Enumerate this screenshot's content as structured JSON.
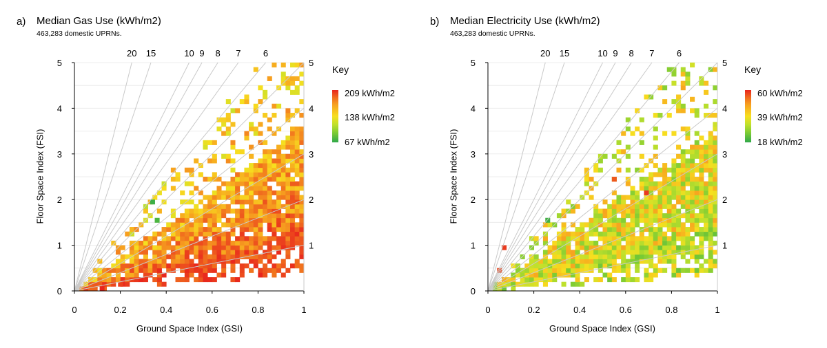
{
  "panels": [
    {
      "id": "a",
      "letter": "a)",
      "title": "Median Gas Use (kWh/m2)",
      "subtitle": "463,283 domestic UPRNs.",
      "xlabel": "Ground Space Index (GSI)",
      "ylabel": "Floor Space Index (FSI)",
      "key_title": "Key",
      "key_labels": [
        "209 kWh/m2",
        "138 kWh/m2",
        "67 kWh/m2"
      ]
    },
    {
      "id": "b",
      "letter": "b)",
      "title": "Median Electricity Use (kWh/m2)",
      "subtitle": "463,283 domestic UPRNs.",
      "xlabel": "Ground Space Index (GSI)",
      "ylabel": "Floor Space Index (FSI)",
      "key_title": "Key",
      "key_labels": [
        "60 kWh/m2",
        "39 kWh/m2",
        "18 kWh/m2"
      ]
    }
  ],
  "chart_data": [
    {
      "type": "heatmap",
      "title": "Median Gas Use (kWh/m2)",
      "subtitle": "463,283 domestic UPRNs.",
      "xlabel": "Ground Space Index (GSI)",
      "ylabel": "Floor Space Index (FSI)",
      "xlim": [
        0,
        1
      ],
      "ylim": [
        0,
        5
      ],
      "x_ticks": [
        "0",
        "0.2",
        "0.4",
        "0.6",
        "0.8",
        "1"
      ],
      "y_ticks": [
        "0",
        "1",
        "2",
        "3",
        "4",
        "5"
      ],
      "storey_lines": [
        1,
        2,
        3,
        4,
        5,
        6,
        7,
        8,
        9,
        10,
        15,
        20
      ],
      "storey_line_labels_top": [
        "20",
        "15",
        "10",
        "9",
        "8",
        "7",
        "6"
      ],
      "storey_line_labels_right": [
        "1",
        "2",
        "3",
        "4",
        "5"
      ],
      "cell_size": [
        0.02,
        0.1
      ],
      "color_scale": {
        "min": 67,
        "mid": 138,
        "max": 209,
        "unit": "kWh/m2"
      },
      "highlight_cells": [
        {
          "x": 0.12,
          "y": 0.05,
          "value": 209
        },
        {
          "x": 0.2,
          "y": 0.15,
          "value": 200
        },
        {
          "x": 0.34,
          "y": 1.95,
          "value": 72
        },
        {
          "x": 0.36,
          "y": 1.55,
          "value": 78
        },
        {
          "x": 0.91,
          "y": 0.95,
          "value": 205
        },
        {
          "x": 0.55,
          "y": 0.65,
          "value": 195
        }
      ]
    },
    {
      "type": "heatmap",
      "title": "Median Electricity Use (kWh/m2)",
      "subtitle": "463,283 domestic UPRNs.",
      "xlabel": "Ground Space Index (GSI)",
      "ylabel": "Floor Space Index (FSI)",
      "xlim": [
        0,
        1
      ],
      "ylim": [
        0,
        5
      ],
      "x_ticks": [
        "0",
        "0.2",
        "0.4",
        "0.6",
        "0.8",
        "1"
      ],
      "y_ticks": [
        "0",
        "1",
        "2",
        "3",
        "4",
        "5"
      ],
      "storey_lines": [
        1,
        2,
        3,
        4,
        5,
        6,
        7,
        8,
        9,
        10,
        15,
        20
      ],
      "storey_line_labels_top": [
        "20",
        "15",
        "10",
        "9",
        "8",
        "7",
        "6"
      ],
      "storey_line_labels_right": [
        "1",
        "2",
        "3",
        "4",
        "5"
      ],
      "cell_size": [
        0.02,
        0.1
      ],
      "color_scale": {
        "min": 18,
        "mid": 39,
        "max": 60,
        "unit": "kWh/m2"
      },
      "highlight_cells": [
        {
          "x": 0.07,
          "y": 0.95,
          "value": 58
        },
        {
          "x": 0.05,
          "y": 0.45,
          "value": 57
        },
        {
          "x": 0.26,
          "y": 1.55,
          "value": 20
        },
        {
          "x": 0.55,
          "y": 2.45,
          "value": 55
        },
        {
          "x": 0.69,
          "y": 2.15,
          "value": 58
        },
        {
          "x": 0.89,
          "y": 4.2,
          "value": 44
        }
      ]
    }
  ]
}
